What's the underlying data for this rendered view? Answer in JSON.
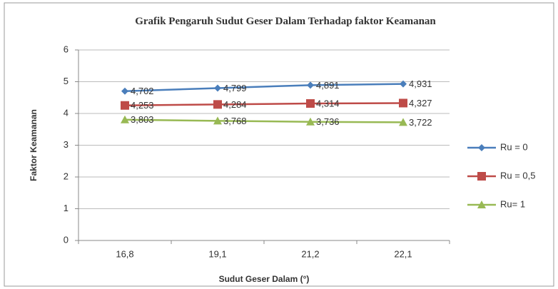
{
  "chart_data": {
    "type": "line",
    "title": "Grafik Pengaruh Sudut Geser Dalam Terhadap faktor Keamanan",
    "x_label": "Sudut Geser Dalam (°)",
    "y_label": "Faktor Keamanan",
    "categories": [
      "16,8",
      "19,1",
      "21,2",
      "22,1"
    ],
    "series": [
      {
        "name": "Ru = 0",
        "color": "#4a7ebb",
        "marker": "diamond",
        "values": [
          4.702,
          4.799,
          4.891,
          4.931
        ],
        "value_labels": [
          "4,702",
          "4,799",
          "4,891",
          "4,931"
        ]
      },
      {
        "name": "Ru = 0,5",
        "color": "#be4b48",
        "marker": "square",
        "values": [
          4.253,
          4.284,
          4.314,
          4.327
        ],
        "value_labels": [
          "4,253",
          "4,284",
          "4,314",
          "4,327"
        ]
      },
      {
        "name": "Ru= 1",
        "color": "#98b954",
        "marker": "triangle",
        "values": [
          3.803,
          3.768,
          3.736,
          3.722
        ],
        "value_labels": [
          "3,803",
          "3,768",
          "3,736",
          "3,722"
        ]
      }
    ],
    "ylim": [
      0,
      6
    ],
    "yticks": [
      0,
      1,
      2,
      3,
      4,
      5,
      6
    ],
    "grid": true,
    "legend": "right"
  }
}
